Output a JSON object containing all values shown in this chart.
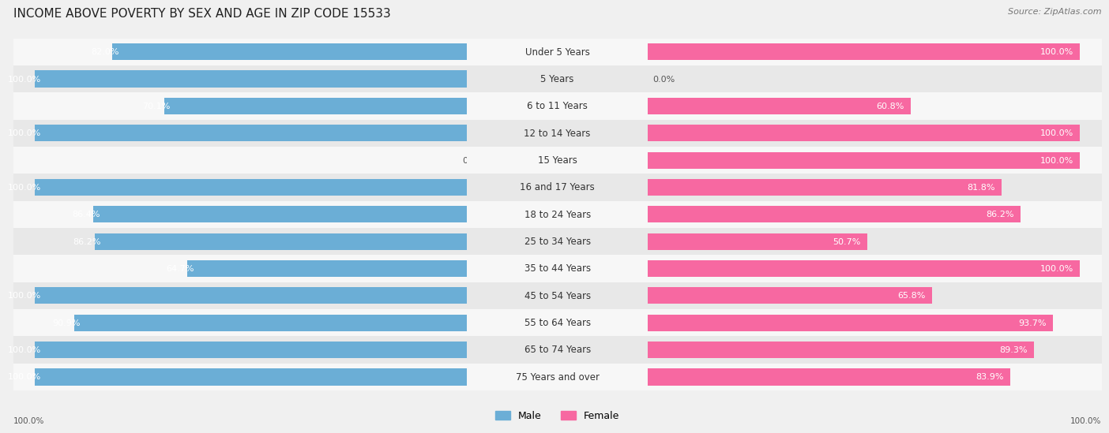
{
  "title": "INCOME ABOVE POVERTY BY SEX AND AGE IN ZIP CODE 15533",
  "source": "Source: ZipAtlas.com",
  "categories": [
    "Under 5 Years",
    "5 Years",
    "6 to 11 Years",
    "12 to 14 Years",
    "15 Years",
    "16 and 17 Years",
    "18 to 24 Years",
    "25 to 34 Years",
    "35 to 44 Years",
    "45 to 54 Years",
    "55 to 64 Years",
    "65 to 74 Years",
    "75 Years and over"
  ],
  "male_values": [
    82.0,
    100.0,
    70.1,
    100.0,
    0.0,
    100.0,
    86.4,
    86.2,
    64.7,
    100.0,
    90.9,
    100.0,
    100.0
  ],
  "female_values": [
    100.0,
    0.0,
    60.8,
    100.0,
    100.0,
    81.8,
    86.2,
    50.7,
    100.0,
    65.8,
    93.7,
    89.3,
    83.9
  ],
  "male_color": "#6baed6",
  "female_color": "#f768a1",
  "male_zero_color": "#c6dbef",
  "female_zero_color": "#fcc5c0",
  "male_label": "Male",
  "female_label": "Female",
  "bg_color": "#f0f0f0",
  "row_color_even": "#f7f7f7",
  "row_color_odd": "#e8e8e8",
  "title_fontsize": 11,
  "label_fontsize": 8.5,
  "value_fontsize": 8,
  "legend_fontsize": 9,
  "source_fontsize": 8
}
